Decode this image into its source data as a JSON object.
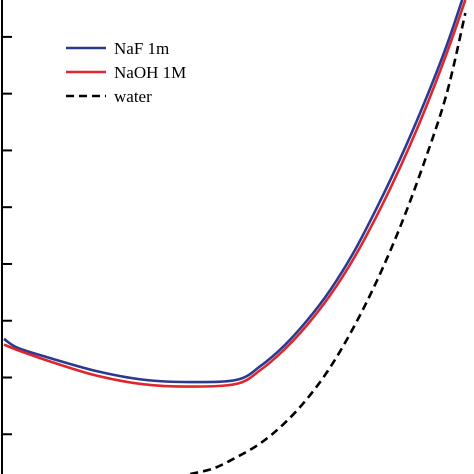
{
  "chart_data": {
    "type": "line",
    "title": "",
    "xlabel": "",
    "ylabel": "",
    "xlim": [
      0,
      1
    ],
    "ylim": [
      -0.07,
      0.765
    ],
    "yticks": [
      0.0,
      0.1,
      0.2,
      0.3,
      0.4,
      0.5,
      0.6,
      0.7
    ],
    "grid": false,
    "legend_position": "top-left",
    "series": [
      {
        "name": "NaF 1m",
        "color": "#2b3a8f",
        "dash": "solid",
        "x": [
          0.0,
          0.03,
          0.1,
          0.2,
          0.3,
          0.4,
          0.5,
          0.55,
          0.6,
          0.65,
          0.7,
          0.75,
          0.8,
          0.85,
          0.9,
          0.95,
          0.99
        ],
        "y": [
          0.168,
          0.152,
          0.134,
          0.111,
          0.096,
          0.092,
          0.096,
          0.12,
          0.155,
          0.2,
          0.254,
          0.32,
          0.399,
          0.485,
          0.58,
          0.685,
          0.782
        ]
      },
      {
        "name": "NaOH 1M",
        "color": "#e0262d",
        "dash": "solid",
        "x": [
          0.0,
          0.03,
          0.1,
          0.2,
          0.3,
          0.4,
          0.5,
          0.55,
          0.6,
          0.65,
          0.7,
          0.75,
          0.8,
          0.85,
          0.9,
          0.95,
          0.99
        ],
        "y": [
          0.158,
          0.148,
          0.128,
          0.103,
          0.088,
          0.084,
          0.089,
          0.113,
          0.148,
          0.192,
          0.245,
          0.309,
          0.385,
          0.47,
          0.565,
          0.671,
          0.765
        ]
      },
      {
        "name": "water",
        "color": "#000000",
        "dash": "dashed",
        "x": [
          0.4,
          0.45,
          0.5,
          0.55,
          0.6,
          0.65,
          0.7,
          0.75,
          0.8,
          0.85,
          0.9,
          0.95,
          0.99
        ],
        "y": [
          -0.07,
          -0.06,
          -0.04,
          -0.016,
          0.018,
          0.062,
          0.118,
          0.188,
          0.27,
          0.365,
          0.475,
          0.6,
          0.742
        ]
      }
    ]
  }
}
